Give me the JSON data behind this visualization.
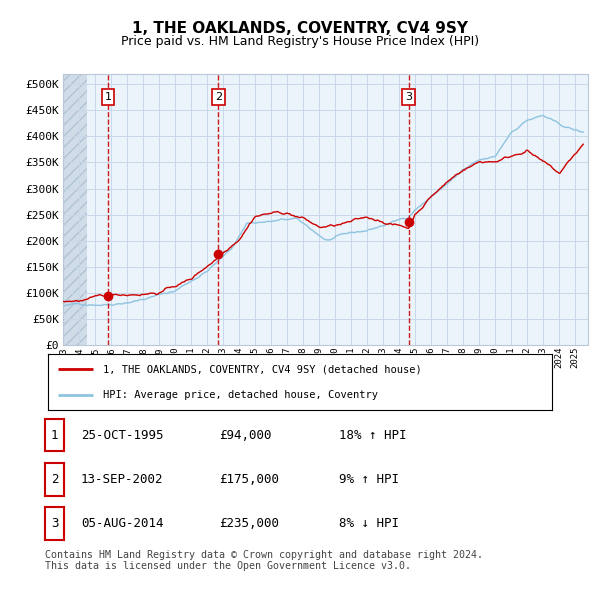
{
  "title": "1, THE OAKLANDS, COVENTRY, CV4 9SY",
  "subtitle": "Price paid vs. HM Land Registry's House Price Index (HPI)",
  "ylabel_ticks": [
    "£0",
    "£50K",
    "£100K",
    "£150K",
    "£200K",
    "£250K",
    "£300K",
    "£350K",
    "£400K",
    "£450K",
    "£500K"
  ],
  "ytick_values": [
    0,
    50000,
    100000,
    150000,
    200000,
    250000,
    300000,
    350000,
    400000,
    450000,
    500000
  ],
  "ylim": [
    0,
    520000
  ],
  "xlim_start": 1993.0,
  "xlim_end": 2025.8,
  "hpi_color": "#8EC4E0",
  "price_color": "#CC0000",
  "marker_color": "#CC0000",
  "dashed_line_color": "#CC0000",
  "grid_color": "#C8D8E8",
  "bg_color": "#EBF3FB",
  "hatch_color": "#C0D0E0",
  "sale_dates": [
    1995.82,
    2002.71,
    2014.59
  ],
  "sale_prices": [
    94000,
    175000,
    235000
  ],
  "sale_labels": [
    "1",
    "2",
    "3"
  ],
  "legend_label_red": "1, THE OAKLANDS, COVENTRY, CV4 9SY (detached house)",
  "legend_label_blue": "HPI: Average price, detached house, Coventry",
  "table_rows": [
    [
      "1",
      "25-OCT-1995",
      "£94,000",
      "18% ↑ HPI"
    ],
    [
      "2",
      "13-SEP-2002",
      "£175,000",
      "9% ↑ HPI"
    ],
    [
      "3",
      "05-AUG-2014",
      "£235,000",
      "8% ↓ HPI"
    ]
  ],
  "footer_text": "Contains HM Land Registry data © Crown copyright and database right 2024.\nThis data is licensed under the Open Government Licence v3.0.",
  "xtick_years": [
    1993,
    1994,
    1995,
    1996,
    1997,
    1998,
    1999,
    2000,
    2001,
    2002,
    2003,
    2004,
    2005,
    2006,
    2007,
    2008,
    2009,
    2010,
    2011,
    2012,
    2013,
    2014,
    2015,
    2016,
    2017,
    2018,
    2019,
    2020,
    2021,
    2022,
    2023,
    2024,
    2025
  ]
}
